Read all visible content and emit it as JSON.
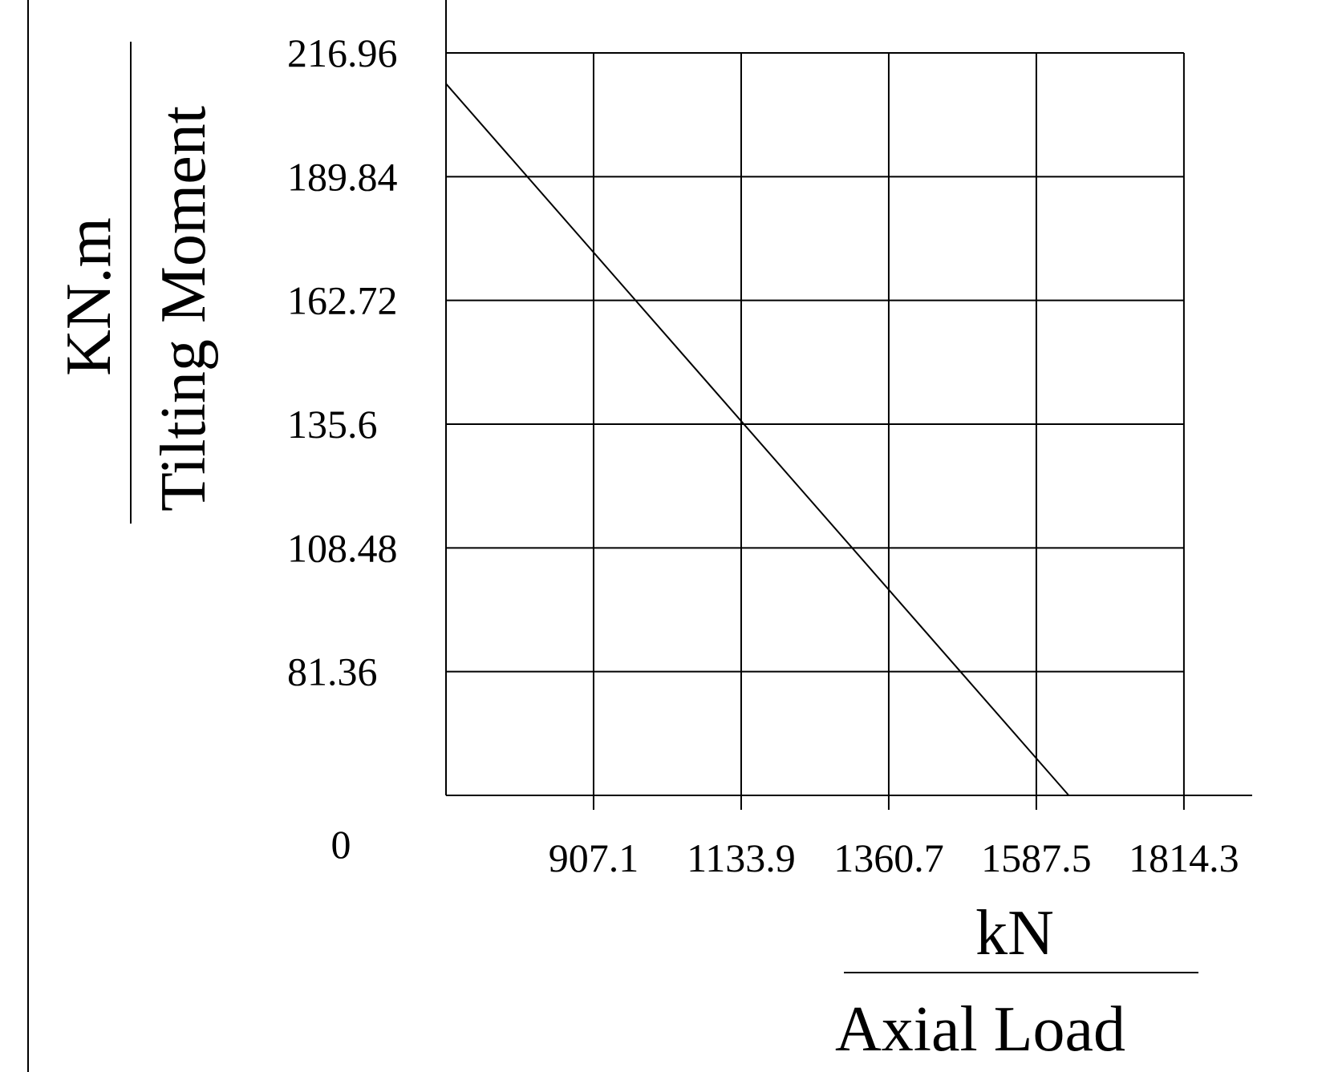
{
  "chart_data": {
    "type": "line",
    "y_label": "Tilting Moment",
    "y_unit": "KN.m",
    "x_label": "Axial Load",
    "x_unit": "kN",
    "origin_label": "0",
    "x": [
      680.3,
      1637.3
    ],
    "values": [
      210.2,
      54.24
    ],
    "color": "#000000",
    "xlim": [
      680.3,
      1919.2
    ],
    "ylim": [
      54.24,
      216.96
    ],
    "xticks": [
      907.1,
      1133.9,
      1360.7,
      1587.5,
      1814.3
    ],
    "yticks": [
      216.96,
      189.84,
      162.72,
      135.6,
      108.48,
      81.36
    ],
    "grid": true
  }
}
